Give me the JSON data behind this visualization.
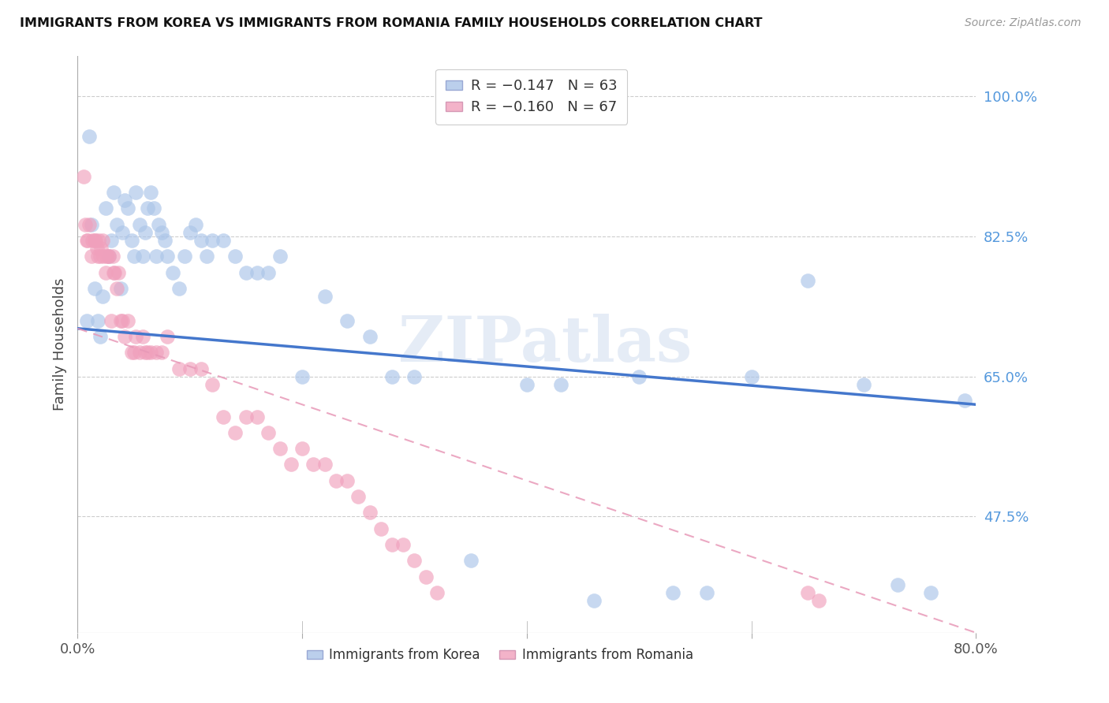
{
  "title": "IMMIGRANTS FROM KOREA VS IMMIGRANTS FROM ROMANIA FAMILY HOUSEHOLDS CORRELATION CHART",
  "source": "Source: ZipAtlas.com",
  "ylabel": "Family Households",
  "ytick_labels": [
    "100.0%",
    "82.5%",
    "65.0%",
    "47.5%"
  ],
  "ytick_values": [
    1.0,
    0.825,
    0.65,
    0.475
  ],
  "legend_korea": "R = −0.147   N = 63",
  "legend_romania": "R = −0.160   N = 67",
  "legend_label_korea": "Immigrants from Korea",
  "legend_label_romania": "Immigrants from Romania",
  "korea_color": "#aac4e8",
  "romania_color": "#f0a0bc",
  "korea_line_color": "#4477cc",
  "romania_line_color": "#e899b8",
  "watermark": "ZIPatlas",
  "xlim": [
    0.0,
    0.8
  ],
  "ylim": [
    0.33,
    1.05
  ],
  "korea_x": [
    0.008,
    0.01,
    0.012,
    0.015,
    0.018,
    0.02,
    0.022,
    0.025,
    0.028,
    0.03,
    0.032,
    0.035,
    0.038,
    0.04,
    0.042,
    0.045,
    0.048,
    0.05,
    0.052,
    0.055,
    0.058,
    0.06,
    0.062,
    0.065,
    0.068,
    0.07,
    0.072,
    0.075,
    0.078,
    0.08,
    0.085,
    0.09,
    0.095,
    0.1,
    0.105,
    0.11,
    0.115,
    0.12,
    0.13,
    0.14,
    0.15,
    0.16,
    0.17,
    0.18,
    0.2,
    0.22,
    0.24,
    0.26,
    0.28,
    0.3,
    0.35,
    0.4,
    0.43,
    0.46,
    0.5,
    0.53,
    0.56,
    0.6,
    0.65,
    0.7,
    0.73,
    0.76,
    0.79
  ],
  "korea_y": [
    0.72,
    0.95,
    0.84,
    0.76,
    0.72,
    0.7,
    0.75,
    0.86,
    0.8,
    0.82,
    0.88,
    0.84,
    0.76,
    0.83,
    0.87,
    0.86,
    0.82,
    0.8,
    0.88,
    0.84,
    0.8,
    0.83,
    0.86,
    0.88,
    0.86,
    0.8,
    0.84,
    0.83,
    0.82,
    0.8,
    0.78,
    0.76,
    0.8,
    0.83,
    0.84,
    0.82,
    0.8,
    0.82,
    0.82,
    0.8,
    0.78,
    0.78,
    0.78,
    0.8,
    0.65,
    0.75,
    0.72,
    0.7,
    0.65,
    0.65,
    0.42,
    0.64,
    0.64,
    0.37,
    0.65,
    0.38,
    0.38,
    0.65,
    0.77,
    0.64,
    0.39,
    0.38,
    0.62
  ],
  "romania_x": [
    0.005,
    0.007,
    0.008,
    0.009,
    0.01,
    0.012,
    0.013,
    0.015,
    0.016,
    0.017,
    0.018,
    0.019,
    0.02,
    0.021,
    0.022,
    0.023,
    0.025,
    0.026,
    0.027,
    0.028,
    0.03,
    0.031,
    0.032,
    0.033,
    0.035,
    0.036,
    0.038,
    0.04,
    0.042,
    0.045,
    0.048,
    0.05,
    0.052,
    0.055,
    0.058,
    0.06,
    0.062,
    0.065,
    0.07,
    0.075,
    0.08,
    0.09,
    0.1,
    0.11,
    0.12,
    0.13,
    0.14,
    0.15,
    0.16,
    0.17,
    0.18,
    0.19,
    0.2,
    0.21,
    0.22,
    0.23,
    0.24,
    0.25,
    0.26,
    0.27,
    0.28,
    0.29,
    0.3,
    0.31,
    0.32,
    0.65,
    0.66
  ],
  "romania_y": [
    0.9,
    0.84,
    0.82,
    0.82,
    0.84,
    0.8,
    0.82,
    0.82,
    0.82,
    0.81,
    0.8,
    0.82,
    0.8,
    0.81,
    0.82,
    0.8,
    0.78,
    0.8,
    0.8,
    0.8,
    0.72,
    0.8,
    0.78,
    0.78,
    0.76,
    0.78,
    0.72,
    0.72,
    0.7,
    0.72,
    0.68,
    0.68,
    0.7,
    0.68,
    0.7,
    0.68,
    0.68,
    0.68,
    0.68,
    0.68,
    0.7,
    0.66,
    0.66,
    0.66,
    0.64,
    0.6,
    0.58,
    0.6,
    0.6,
    0.58,
    0.56,
    0.54,
    0.56,
    0.54,
    0.54,
    0.52,
    0.52,
    0.5,
    0.48,
    0.46,
    0.44,
    0.44,
    0.42,
    0.4,
    0.38,
    0.38,
    0.37
  ],
  "korea_line_x": [
    0.0,
    0.8
  ],
  "korea_line_y": [
    0.71,
    0.615
  ],
  "romania_line_x": [
    0.0,
    0.8
  ],
  "romania_line_y": [
    0.71,
    0.33
  ]
}
